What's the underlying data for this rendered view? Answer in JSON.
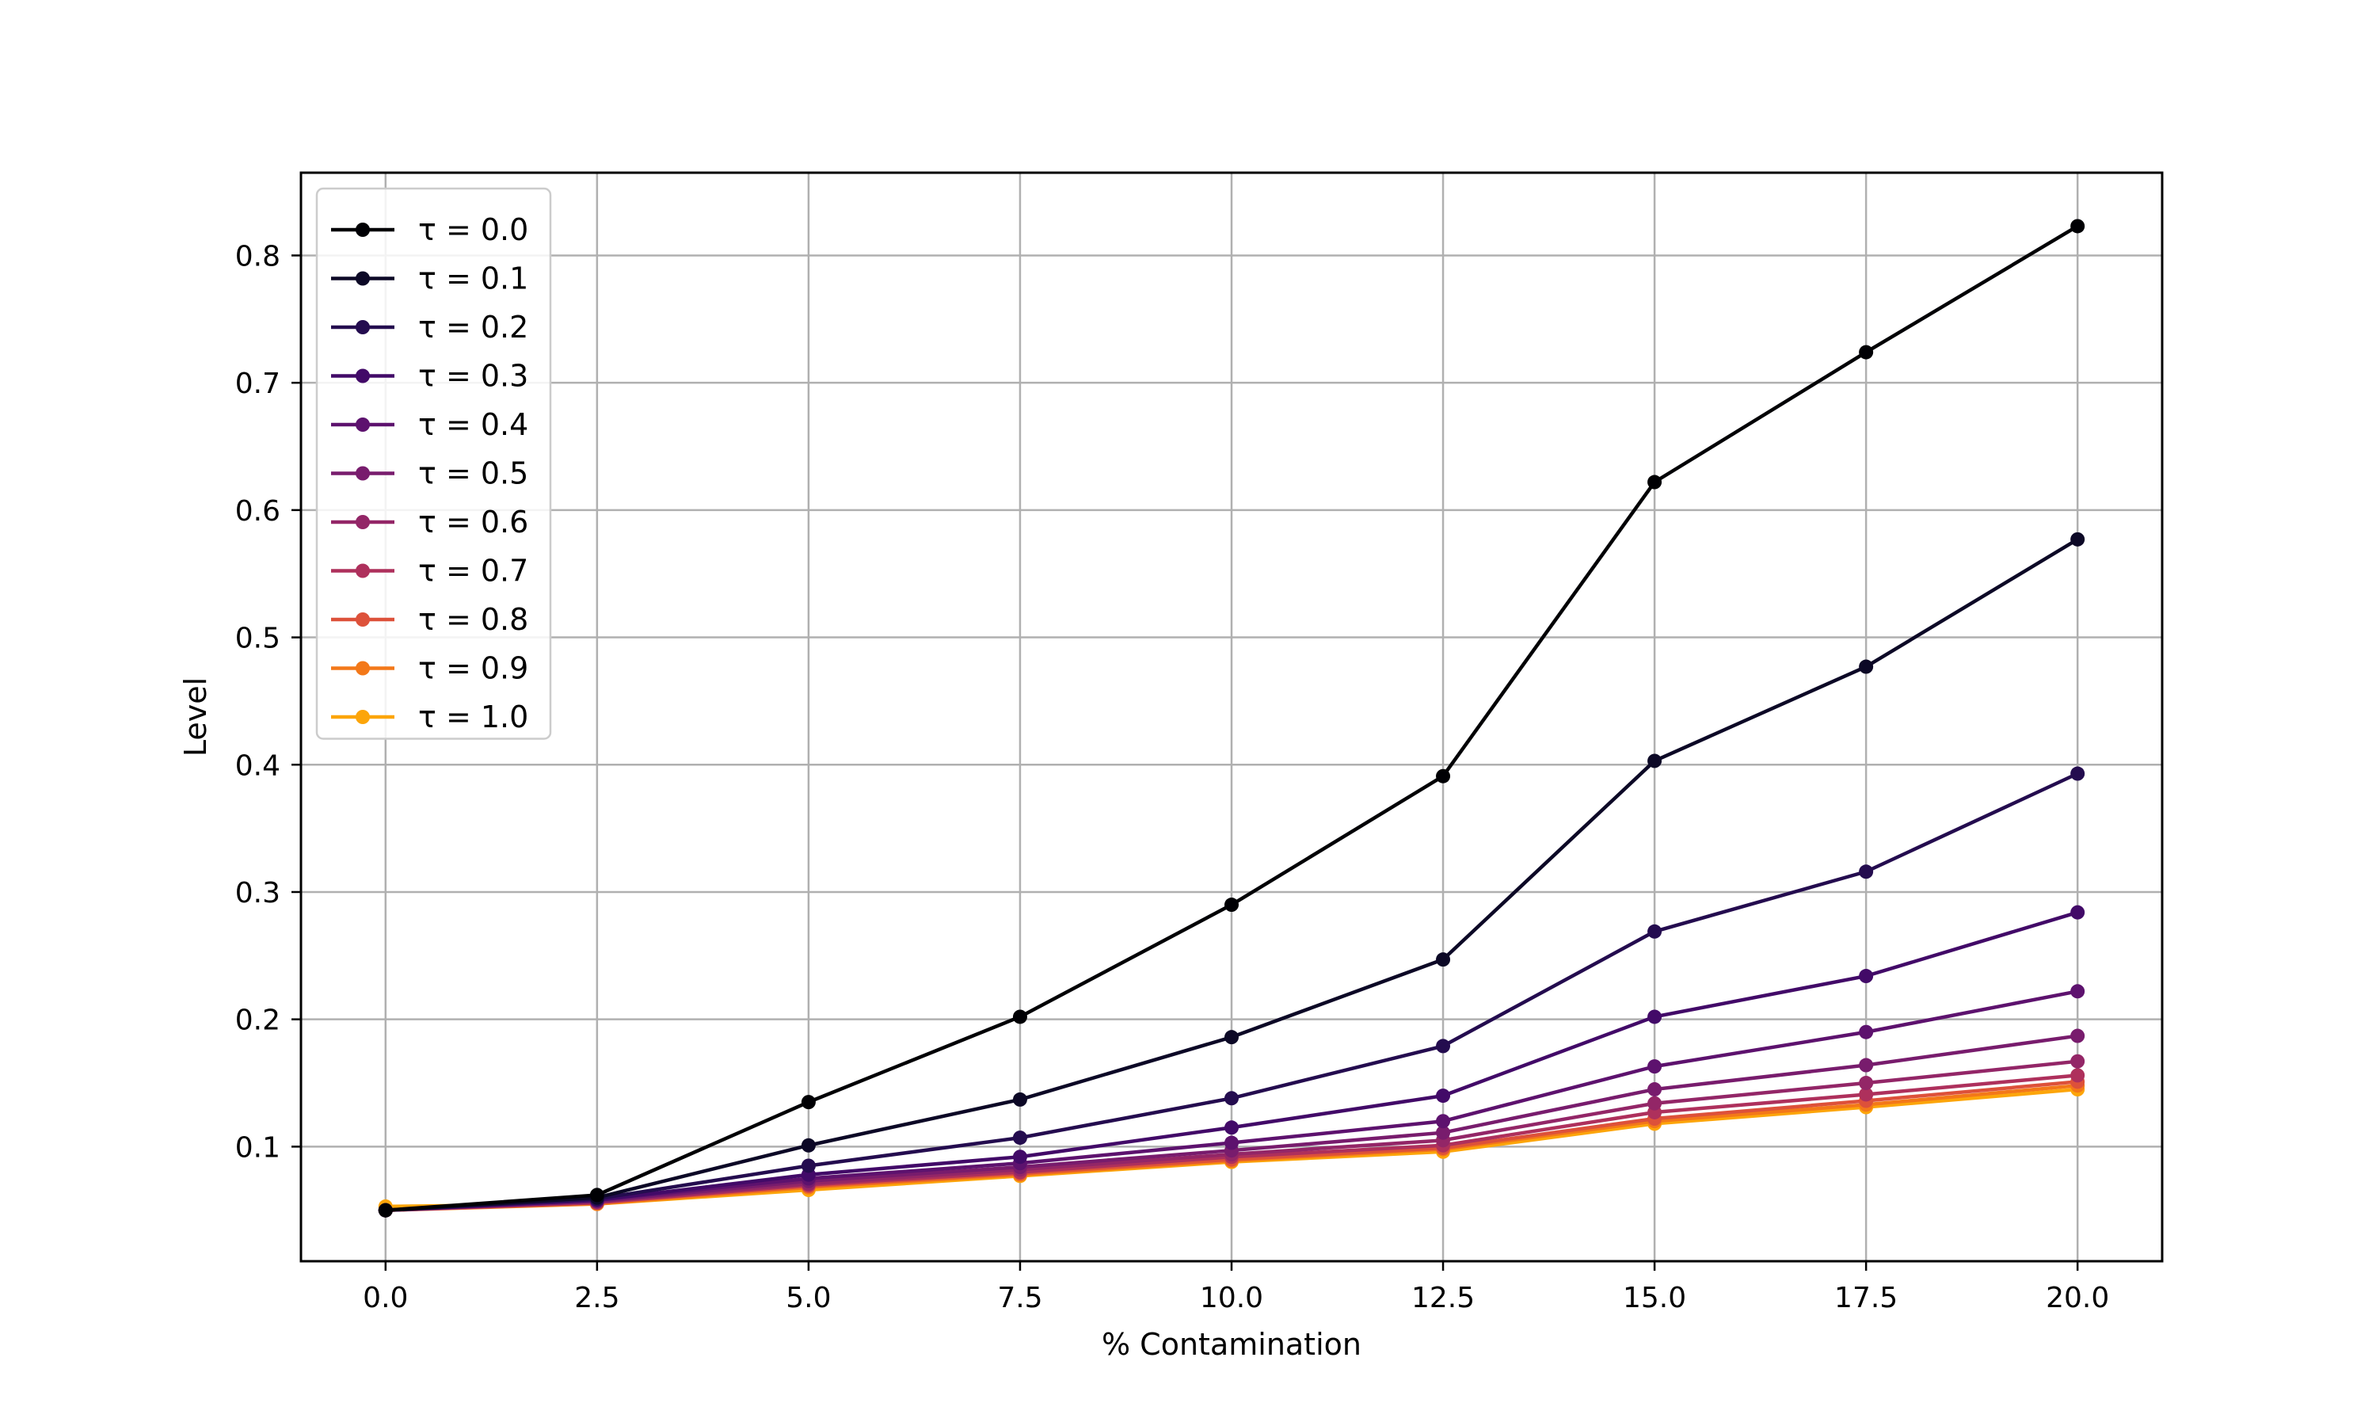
{
  "chart_data": {
    "type": "line",
    "title": "",
    "xlabel": "% Contamination",
    "ylabel": "Level",
    "x": [
      0.0,
      2.5,
      5.0,
      7.5,
      10.0,
      12.5,
      15.0,
      17.5,
      20.0
    ],
    "x_tick_labels": [
      "0.0",
      "2.5",
      "5.0",
      "7.5",
      "10.0",
      "12.5",
      "15.0",
      "17.5",
      "20.0"
    ],
    "y_ticks": [
      0.1,
      0.2,
      0.3,
      0.4,
      0.5,
      0.6,
      0.7,
      0.8
    ],
    "y_tick_labels": [
      "0.1",
      "0.2",
      "0.3",
      "0.4",
      "0.5",
      "0.6",
      "0.7",
      "0.8"
    ],
    "xlim": [
      -1.0,
      21.0
    ],
    "ylim": [
      0.01,
      0.865
    ],
    "grid": true,
    "legend_position": "top-left",
    "series": [
      {
        "name": "τ = 0.0",
        "tau": "0.0",
        "color": "#000004",
        "values": [
          0.05,
          0.062,
          0.135,
          0.202,
          0.29,
          0.391,
          0.622,
          0.724,
          0.823
        ]
      },
      {
        "name": "τ = 0.1",
        "tau": "0.1",
        "color": "#0c0826",
        "values": [
          0.05,
          0.06,
          0.101,
          0.137,
          0.186,
          0.247,
          0.403,
          0.477,
          0.577
        ]
      },
      {
        "name": "τ = 0.2",
        "tau": "0.2",
        "color": "#240c4f",
        "values": [
          0.05,
          0.059,
          0.085,
          0.107,
          0.138,
          0.179,
          0.269,
          0.316,
          0.393
        ]
      },
      {
        "name": "τ = 0.3",
        "tau": "0.3",
        "color": "#420a68",
        "values": [
          0.05,
          0.058,
          0.078,
          0.092,
          0.115,
          0.14,
          0.202,
          0.234,
          0.284
        ]
      },
      {
        "name": "τ = 0.4",
        "tau": "0.4",
        "color": "#5d126e",
        "values": [
          0.05,
          0.058,
          0.075,
          0.087,
          0.103,
          0.12,
          0.163,
          0.19,
          0.222
        ]
      },
      {
        "name": "τ = 0.5",
        "tau": "0.5",
        "color": "#781c6d",
        "values": [
          0.05,
          0.057,
          0.073,
          0.084,
          0.097,
          0.111,
          0.145,
          0.164,
          0.187
        ]
      },
      {
        "name": "τ = 0.6",
        "tau": "0.6",
        "color": "#932667",
        "values": [
          0.05,
          0.057,
          0.071,
          0.082,
          0.094,
          0.105,
          0.134,
          0.15,
          0.167
        ]
      },
      {
        "name": "τ = 0.7",
        "tau": "0.7",
        "color": "#ae305c",
        "values": [
          0.05,
          0.056,
          0.07,
          0.08,
          0.092,
          0.101,
          0.127,
          0.141,
          0.156
        ]
      },
      {
        "name": "τ = 0.8",
        "tau": "0.8",
        "color": "#dd513a",
        "values": [
          0.05,
          0.056,
          0.069,
          0.079,
          0.09,
          0.099,
          0.122,
          0.136,
          0.151
        ]
      },
      {
        "name": "τ = 0.9",
        "tau": "0.9",
        "color": "#f37819",
        "values": [
          0.05,
          0.055,
          0.068,
          0.078,
          0.089,
          0.098,
          0.12,
          0.133,
          0.148
        ]
      },
      {
        "name": "τ = 1.0",
        "tau": "1.0",
        "color": "#fca50a",
        "values": [
          0.053,
          0.055,
          0.066,
          0.077,
          0.088,
          0.096,
          0.118,
          0.131,
          0.145
        ]
      }
    ]
  }
}
